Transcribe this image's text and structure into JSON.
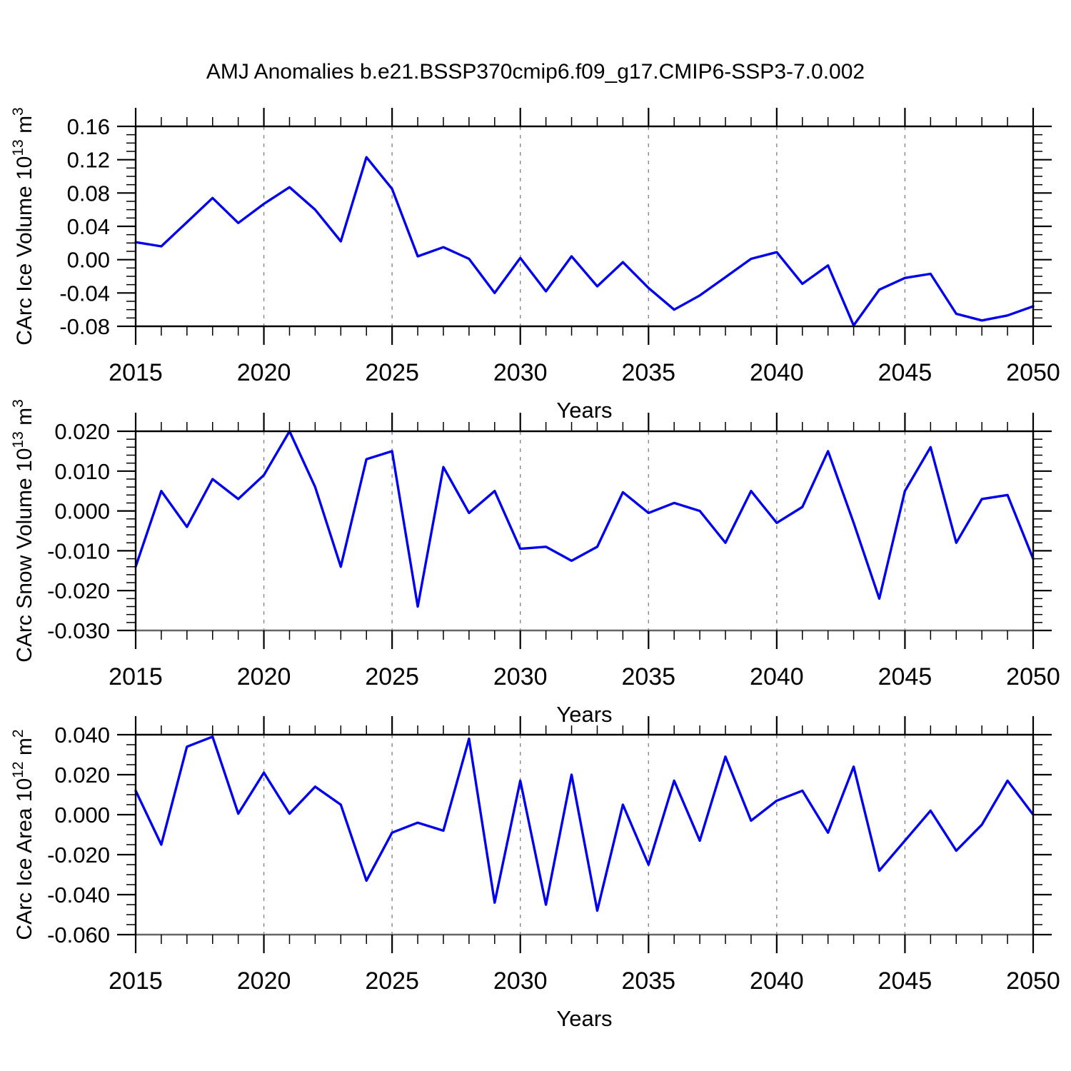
{
  "title": "AMJ Anomalies b.e21.BSSP370cmip6.f09_g17.CMIP6-SSP3-7.0.002",
  "line_color": "#0000EE",
  "frame_color": "#000000",
  "gridline_color": "#888888",
  "chart_data": [
    {
      "id": "ice-volume",
      "type": "line",
      "ylabel": "CArc Ice Volume 10^13 m^3",
      "ylabel_parts": [
        {
          "t": "CArc Ice Volume 10"
        },
        {
          "t": "13",
          "sup": true
        },
        {
          "t": " m"
        },
        {
          "t": "3",
          "sup": true
        }
      ],
      "xlabel": "Years",
      "xlim": [
        2015,
        2050
      ],
      "ylim": [
        -0.08,
        0.16
      ],
      "yticks": [
        0.16,
        0.12,
        0.08,
        0.04,
        0.0,
        -0.04,
        -0.08
      ],
      "ytick_labels": [
        "0.16",
        "0.12",
        "0.08",
        "0.04",
        "0.00",
        "-0.04",
        "-0.08"
      ],
      "y_minor_step": 0.01,
      "xticks": [
        2015,
        2020,
        2025,
        2030,
        2035,
        2040,
        2045,
        2050
      ],
      "x_minor_step": 1,
      "vgrid_years": [
        2020,
        2025,
        2030,
        2035,
        2040,
        2045
      ],
      "grid": "vertical-dashed",
      "legend": "none",
      "x": [
        2015,
        2016,
        2017,
        2018,
        2019,
        2020,
        2021,
        2022,
        2023,
        2024,
        2025,
        2026,
        2027,
        2028,
        2029,
        2030,
        2031,
        2032,
        2033,
        2034,
        2035,
        2036,
        2037,
        2038,
        2039,
        2040,
        2041,
        2042,
        2043,
        2044,
        2045,
        2046,
        2047,
        2048,
        2049,
        2050
      ],
      "values": [
        0.021,
        0.016,
        0.045,
        0.074,
        0.044,
        0.067,
        0.087,
        0.06,
        0.022,
        0.123,
        0.085,
        0.004,
        0.015,
        0.001,
        -0.04,
        0.002,
        -0.038,
        0.004,
        -0.032,
        -0.003,
        -0.034,
        -0.06,
        -0.043,
        -0.021,
        0.001,
        0.009,
        -0.029,
        -0.007,
        -0.079,
        -0.036,
        -0.022,
        -0.017,
        -0.065,
        -0.073,
        -0.067,
        -0.056
      ]
    },
    {
      "id": "snow-volume",
      "type": "line",
      "ylabel": "CArc Snow Volume 10^13 m^3",
      "ylabel_parts": [
        {
          "t": "CArc Snow Volume 10"
        },
        {
          "t": "13",
          "sup": true
        },
        {
          "t": " m"
        },
        {
          "t": "3",
          "sup": true
        }
      ],
      "xlabel": "Years",
      "xlim": [
        2015,
        2050
      ],
      "ylim": [
        -0.03,
        0.02
      ],
      "yticks": [
        0.02,
        0.01,
        0.0,
        -0.01,
        -0.02,
        -0.03
      ],
      "ytick_labels": [
        "0.020",
        "0.010",
        "0.000",
        "-0.010",
        "-0.020",
        "-0.030"
      ],
      "y_minor_step": 0.002,
      "xticks": [
        2015,
        2020,
        2025,
        2030,
        2035,
        2040,
        2045,
        2050
      ],
      "x_minor_step": 1,
      "vgrid_years": [
        2020,
        2025,
        2030,
        2035,
        2040,
        2045
      ],
      "grid": "vertical-dashed",
      "legend": "none",
      "x": [
        2015,
        2016,
        2017,
        2018,
        2019,
        2020,
        2021,
        2022,
        2023,
        2024,
        2025,
        2026,
        2027,
        2028,
        2029,
        2030,
        2031,
        2032,
        2033,
        2034,
        2035,
        2036,
        2037,
        2038,
        2039,
        2040,
        2041,
        2042,
        2043,
        2044,
        2045,
        2046,
        2047,
        2048,
        2049,
        2050
      ],
      "values": [
        -0.014,
        0.005,
        -0.004,
        0.008,
        0.003,
        0.009,
        0.02,
        0.006,
        -0.014,
        0.013,
        0.015,
        -0.024,
        0.011,
        -0.0005,
        0.005,
        -0.0095,
        -0.009,
        -0.0125,
        -0.009,
        0.0047,
        -0.0005,
        0.002,
        0.0,
        -0.008,
        0.005,
        -0.003,
        0.001,
        0.015,
        -0.003,
        -0.022,
        0.005,
        0.016,
        -0.008,
        0.003,
        0.004,
        -0.012
      ]
    },
    {
      "id": "ice-area",
      "type": "line",
      "ylabel": "CArc Ice Area 10^12 m^2",
      "ylabel_parts": [
        {
          "t": "CArc Ice Area 10"
        },
        {
          "t": "12",
          "sup": true
        },
        {
          "t": " m"
        },
        {
          "t": "2",
          "sup": true
        }
      ],
      "xlabel": "Years",
      "xlim": [
        2015,
        2050
      ],
      "ylim": [
        -0.06,
        0.04
      ],
      "yticks": [
        0.04,
        0.02,
        0.0,
        -0.02,
        -0.04,
        -0.06
      ],
      "ytick_labels": [
        "0.040",
        "0.020",
        "0.000",
        "-0.020",
        "-0.040",
        "-0.060"
      ],
      "y_minor_step": 0.005,
      "xticks": [
        2015,
        2020,
        2025,
        2030,
        2035,
        2040,
        2045,
        2050
      ],
      "x_minor_step": 1,
      "vgrid_years": [
        2020,
        2025,
        2030,
        2035,
        2040,
        2045
      ],
      "grid": "vertical-dashed",
      "legend": "none",
      "x": [
        2015,
        2016,
        2017,
        2018,
        2019,
        2020,
        2021,
        2022,
        2023,
        2024,
        2025,
        2026,
        2027,
        2028,
        2029,
        2030,
        2031,
        2032,
        2033,
        2034,
        2035,
        2036,
        2037,
        2038,
        2039,
        2040,
        2041,
        2042,
        2043,
        2044,
        2045,
        2046,
        2047,
        2048,
        2049,
        2050
      ],
      "values": [
        0.012,
        -0.015,
        0.034,
        0.039,
        0.0005,
        0.021,
        0.0005,
        0.014,
        0.005,
        -0.033,
        -0.009,
        -0.004,
        -0.008,
        0.038,
        -0.044,
        0.017,
        -0.045,
        0.02,
        -0.048,
        0.005,
        -0.025,
        0.017,
        -0.013,
        0.029,
        -0.003,
        0.007,
        0.012,
        -0.009,
        0.024,
        -0.028,
        -0.013,
        0.002,
        -0.018,
        -0.005,
        0.017,
        0.0
      ]
    }
  ]
}
